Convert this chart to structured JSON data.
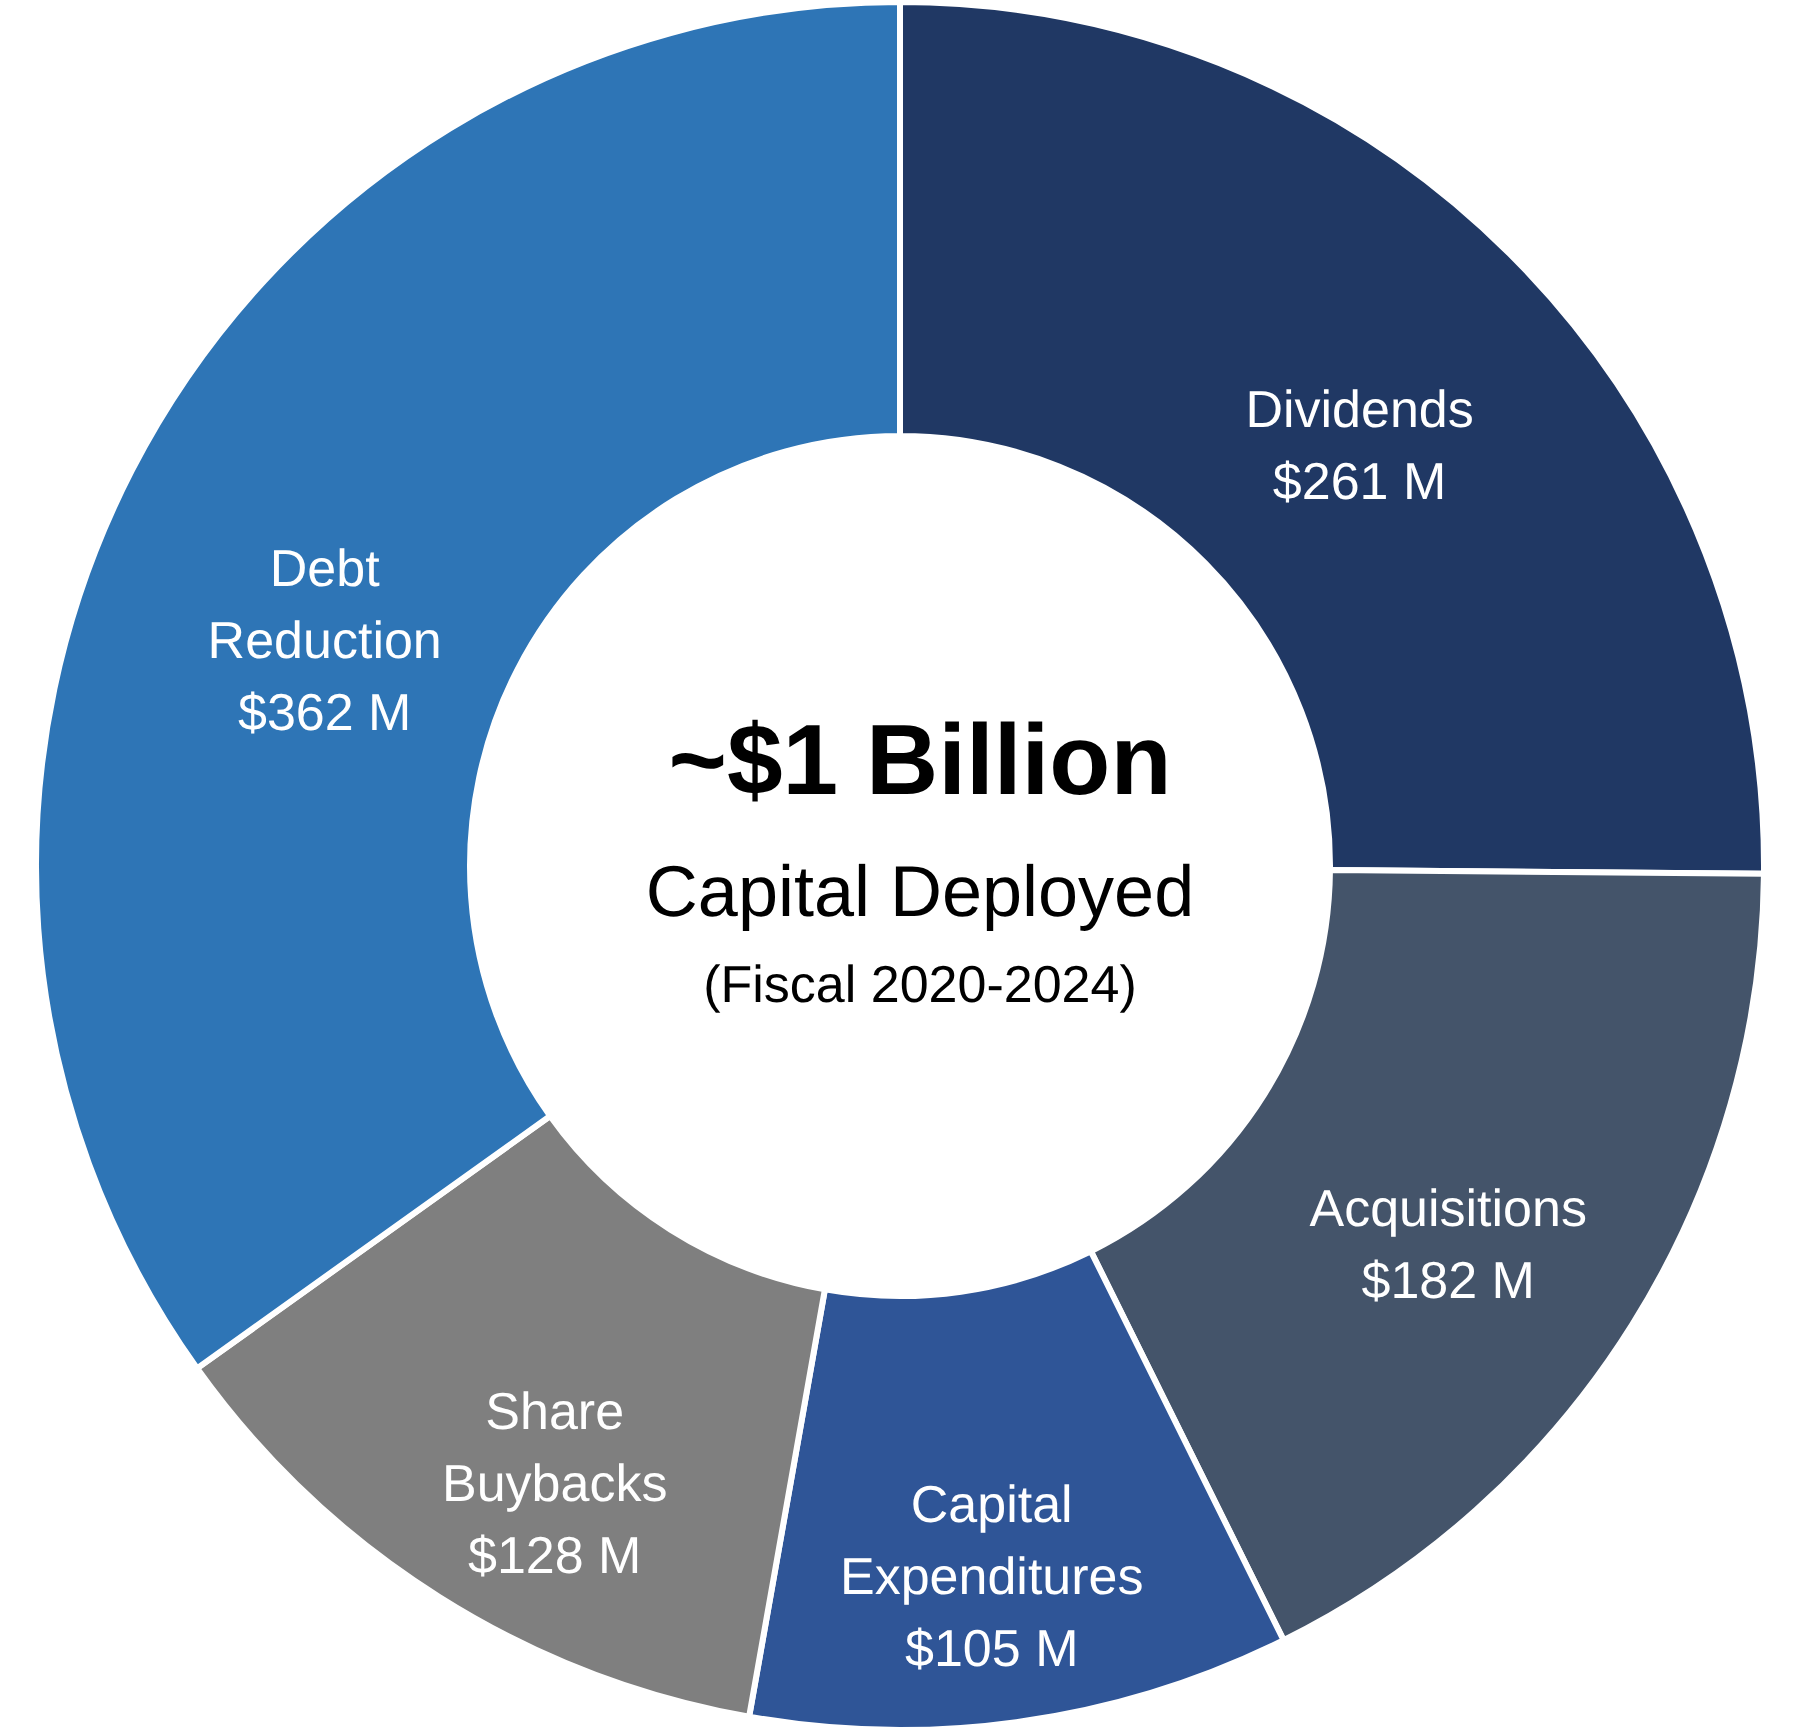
{
  "chart_data": {
    "type": "donut",
    "title": "~$1 Billion",
    "subtitle": "Capital Deployed",
    "annotations": [
      "(Fiscal 2020-2024)"
    ],
    "categories": [
      "Dividends",
      "Acquisitions",
      "Capital Expenditures",
      "Share Buybacks",
      "Debt Reduction"
    ],
    "values": [
      261,
      182,
      105,
      128,
      362
    ],
    "value_labels": [
      "$261 M",
      "$182 M",
      "$105 M",
      "$128 M",
      "$362 M"
    ],
    "colors": [
      "#203864",
      "#44546a",
      "#2f5597",
      "#7f7f7f",
      "#2e75b6"
    ]
  }
}
